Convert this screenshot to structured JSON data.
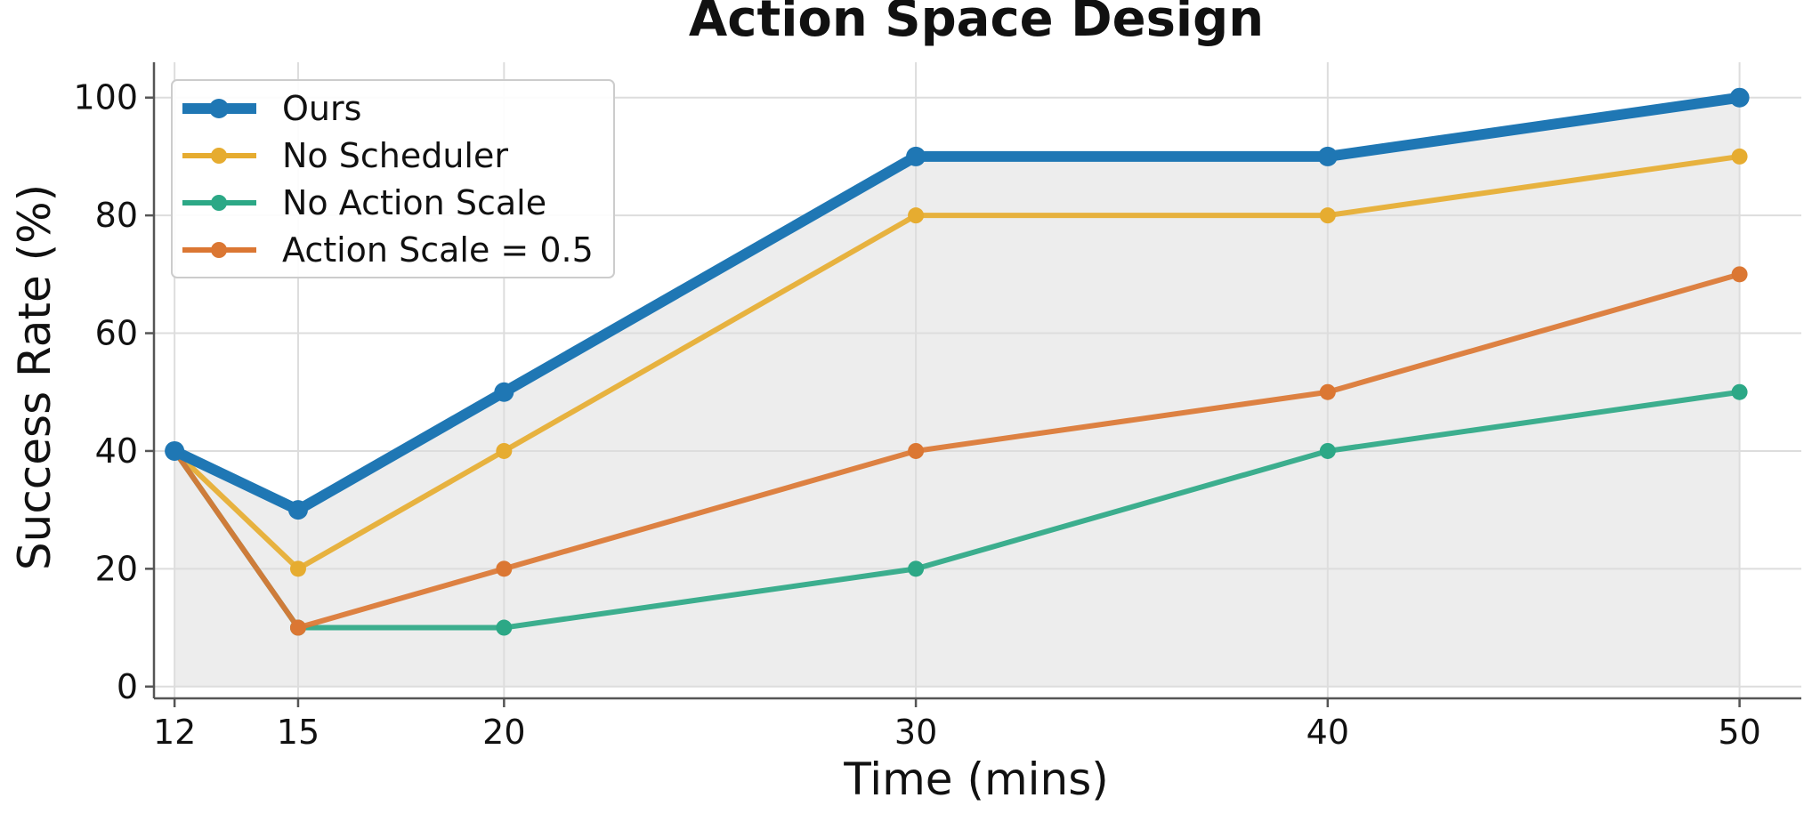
{
  "chart_data": {
    "type": "line",
    "title": "Action Space Design",
    "xlabel": "Time (mins)",
    "ylabel": "Success Rate (%)",
    "x": [
      12,
      15,
      20,
      30,
      40,
      50
    ],
    "xlim": [
      11.5,
      51.5
    ],
    "ylim": [
      -2,
      106
    ],
    "xticks": [
      12,
      15,
      20,
      30,
      40,
      50
    ],
    "yticks": [
      0,
      20,
      40,
      60,
      80,
      100
    ],
    "grid": true,
    "legend_position": "top-left",
    "shaded_region": "area under the highest series, light gray",
    "series": [
      {
        "name": "Ours",
        "values": [
          40,
          30,
          50,
          90,
          90,
          100
        ],
        "color": "#1f77b4",
        "emphasis": "thick"
      },
      {
        "name": "No Scheduler",
        "values": [
          40,
          20,
          40,
          80,
          80,
          90
        ],
        "color": "#e6ac30"
      },
      {
        "name": "No Action Scale",
        "values": [
          40,
          10,
          10,
          20,
          40,
          50
        ],
        "color": "#2ca886"
      },
      {
        "name": "Action Scale = 0.5",
        "values": [
          40,
          10,
          20,
          40,
          50,
          70
        ],
        "color": "#db7733"
      }
    ],
    "colors": {
      "fill": "#ededed",
      "grid": "#dddddd",
      "axis": "#555555"
    }
  }
}
